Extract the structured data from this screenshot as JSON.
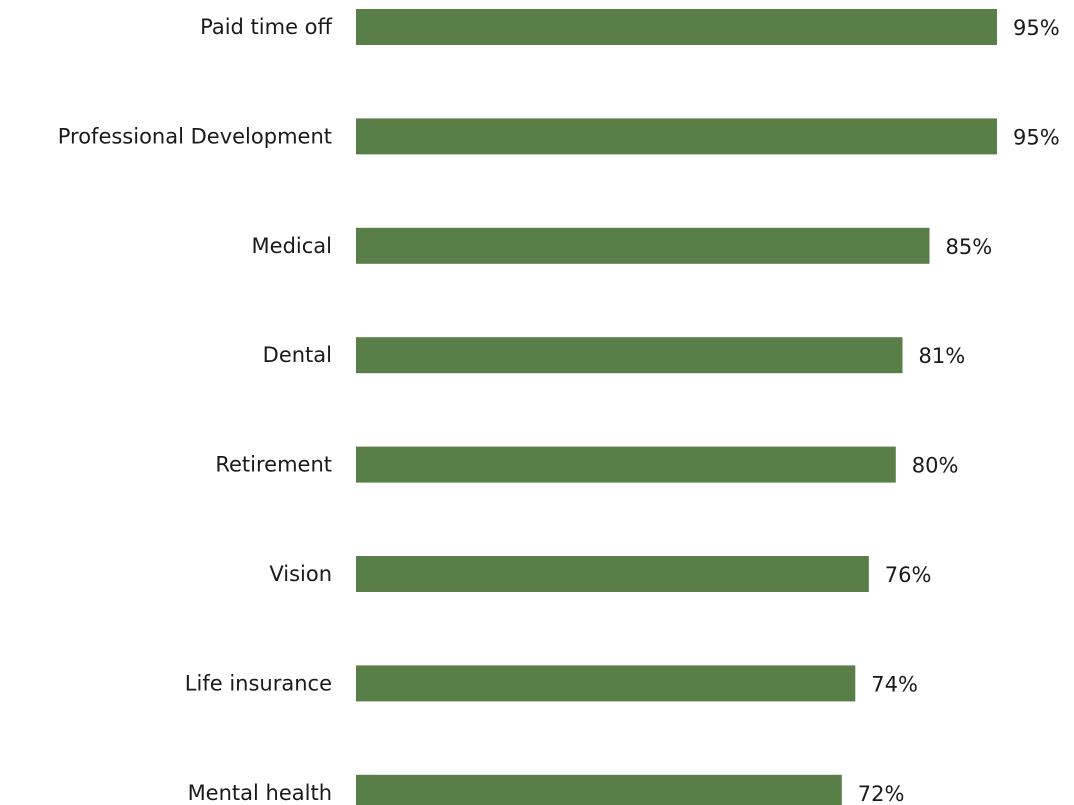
{
  "chart_data": {
    "type": "bar",
    "orientation": "horizontal",
    "categories": [
      "Paid time off",
      "Professional Development",
      "Medical",
      "Dental",
      "Retirement",
      "Vision",
      "Life insurance",
      "Mental health"
    ],
    "values": [
      95,
      95,
      85,
      81,
      80,
      76,
      74,
      72
    ],
    "value_labels": [
      "95%",
      "95%",
      "85%",
      "81%",
      "80%",
      "76%",
      "74%",
      "72%"
    ],
    "title": "",
    "xlabel": "",
    "ylabel": "",
    "xlim": [
      0,
      95
    ],
    "grid": false,
    "legend": "none",
    "bar_color": "#5a7e47"
  }
}
